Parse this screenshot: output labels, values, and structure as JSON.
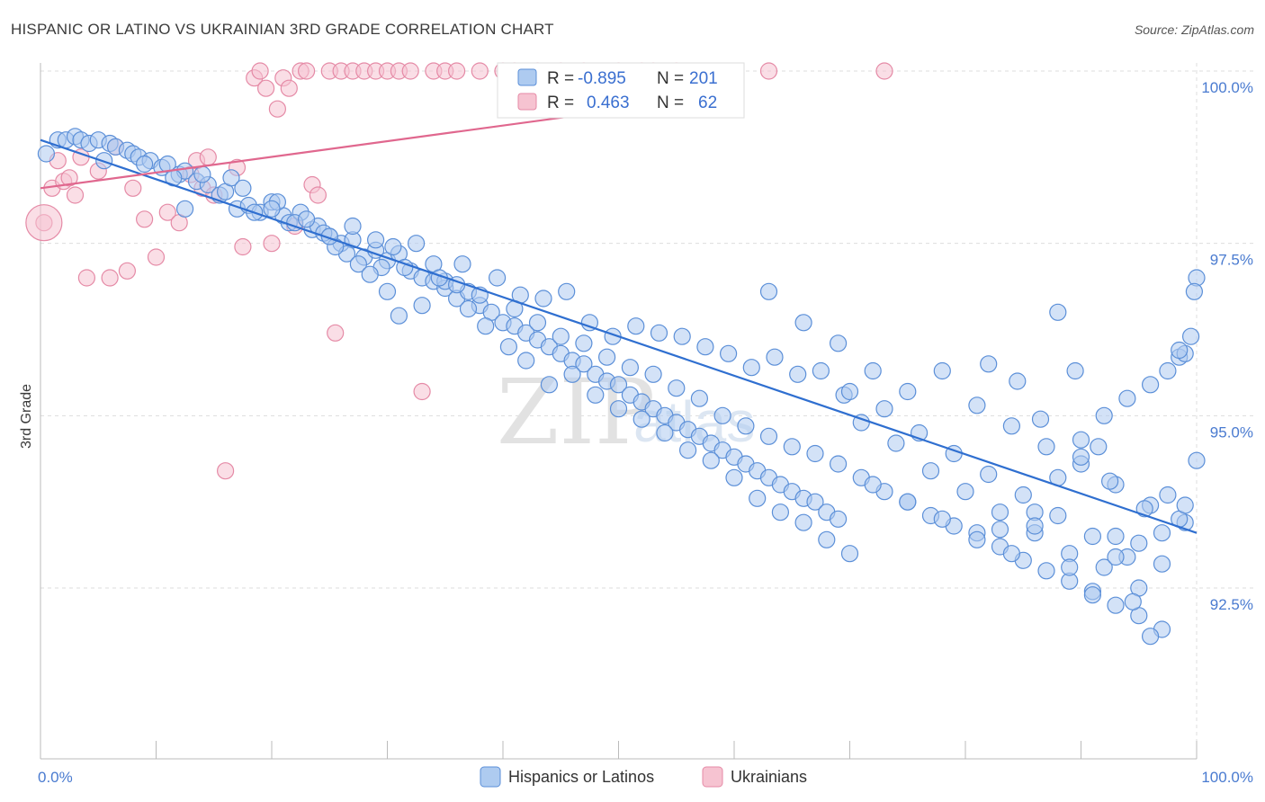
{
  "title": "HISPANIC OR LATINO VS UKRAINIAN 3RD GRADE CORRELATION CHART",
  "source": "Source: ZipAtlas.com",
  "watermark": {
    "zip": "ZIP",
    "atlas": "atlas"
  },
  "colors": {
    "blue_fill": "#aecbf0",
    "blue_stroke": "#5b8fd8",
    "blue_line": "#2f6fd0",
    "pink_fill": "#f6c3d1",
    "pink_stroke": "#e58aa6",
    "pink_line": "#e0678e"
  },
  "chart_data": {
    "type": "scatter",
    "title": "HISPANIC OR LATINO VS UKRAINIAN 3RD GRADE CORRELATION CHART",
    "ylabel": "3rd Grade",
    "xlabel": "",
    "x_tick_labels": [
      "0.0%",
      "100.0%"
    ],
    "y_tick_labels": [
      "100.0%",
      "97.5%",
      "95.0%",
      "92.5%"
    ],
    "y_ticks": [
      100.0,
      97.5,
      95.0,
      92.5
    ],
    "xlim": [
      0,
      100
    ],
    "ylim": [
      90.0,
      100.6
    ],
    "grid": true,
    "legend": {
      "placement": "top-center",
      "entries": [
        {
          "r_label": "R =",
          "r": "-0.895",
          "n_label": "N =",
          "n": "201"
        },
        {
          "r_label": "R =",
          "r": "0.463",
          "n_label": "N =",
          "n": "62"
        }
      ]
    },
    "series": [
      {
        "name": "Hispanics or Latinos",
        "trend": {
          "x": [
            0,
            100
          ],
          "y": [
            99.0,
            93.3
          ]
        },
        "points": [
          [
            0.5,
            98.8
          ],
          [
            1.5,
            99.0
          ],
          [
            2.2,
            99.0
          ],
          [
            3,
            99.05
          ],
          [
            3.5,
            99.0
          ],
          [
            4.2,
            98.95
          ],
          [
            5,
            99.0
          ],
          [
            6,
            98.95
          ],
          [
            6.5,
            98.9
          ],
          [
            7.5,
            98.85
          ],
          [
            8,
            98.8
          ],
          [
            8.5,
            98.75
          ],
          [
            9.5,
            98.7
          ],
          [
            10.5,
            98.6
          ],
          [
            11,
            98.65
          ],
          [
            12,
            98.5
          ],
          [
            12.5,
            98.55
          ],
          [
            13.5,
            98.4
          ],
          [
            14.5,
            98.35
          ],
          [
            15.5,
            98.2
          ],
          [
            16,
            98.25
          ],
          [
            17,
            98.0
          ],
          [
            18,
            98.05
          ],
          [
            19,
            97.95
          ],
          [
            20,
            98.1
          ],
          [
            21,
            97.9
          ],
          [
            21.5,
            97.8
          ],
          [
            22.5,
            97.95
          ],
          [
            23.5,
            97.7
          ],
          [
            24,
            97.75
          ],
          [
            25,
            97.6
          ],
          [
            26,
            97.5
          ],
          [
            27,
            97.55
          ],
          [
            28,
            97.3
          ],
          [
            29,
            97.4
          ],
          [
            30,
            97.25
          ],
          [
            31,
            97.35
          ],
          [
            32,
            97.1
          ],
          [
            33,
            97.0
          ],
          [
            34,
            96.95
          ],
          [
            35,
            96.85
          ],
          [
            36,
            96.7
          ],
          [
            37,
            96.8
          ],
          [
            38,
            96.6
          ],
          [
            39,
            96.5
          ],
          [
            40,
            96.35
          ],
          [
            41,
            96.3
          ],
          [
            42,
            96.2
          ],
          [
            43,
            96.1
          ],
          [
            44,
            96.0
          ],
          [
            45,
            95.9
          ],
          [
            46,
            95.8
          ],
          [
            47,
            95.75
          ],
          [
            48,
            95.6
          ],
          [
            49,
            95.5
          ],
          [
            50,
            95.45
          ],
          [
            51,
            95.3
          ],
          [
            52,
            95.2
          ],
          [
            53,
            95.1
          ],
          [
            54,
            95.0
          ],
          [
            55,
            94.9
          ],
          [
            56,
            94.8
          ],
          [
            57,
            94.7
          ],
          [
            58,
            94.6
          ],
          [
            59,
            94.5
          ],
          [
            60,
            94.4
          ],
          [
            61,
            94.3
          ],
          [
            62,
            94.2
          ],
          [
            63,
            94.1
          ],
          [
            64,
            94.0
          ],
          [
            65,
            93.9
          ],
          [
            66,
            93.8
          ],
          [
            67,
            93.75
          ],
          [
            68,
            93.6
          ],
          [
            69,
            93.5
          ],
          [
            5.5,
            98.7
          ],
          [
            9,
            98.65
          ],
          [
            11.5,
            98.45
          ],
          [
            14,
            98.5
          ],
          [
            16.5,
            98.45
          ],
          [
            18.5,
            97.95
          ],
          [
            20.5,
            98.1
          ],
          [
            22,
            97.8
          ],
          [
            24.5,
            97.65
          ],
          [
            26.5,
            97.35
          ],
          [
            27.5,
            97.2
          ],
          [
            29.5,
            97.15
          ],
          [
            30.5,
            97.45
          ],
          [
            32.5,
            97.5
          ],
          [
            34,
            97.2
          ],
          [
            36.5,
            97.2
          ],
          [
            39.5,
            97.0
          ],
          [
            41.5,
            96.75
          ],
          [
            43.5,
            96.7
          ],
          [
            45.5,
            96.8
          ],
          [
            47.5,
            96.35
          ],
          [
            49.5,
            96.15
          ],
          [
            51.5,
            96.3
          ],
          [
            53.5,
            96.2
          ],
          [
            55.5,
            96.15
          ],
          [
            57.5,
            96.0
          ],
          [
            59.5,
            95.9
          ],
          [
            61.5,
            95.7
          ],
          [
            63.5,
            95.85
          ],
          [
            65.5,
            95.6
          ],
          [
            67.5,
            95.65
          ],
          [
            69.5,
            95.3
          ],
          [
            12.5,
            98.0
          ],
          [
            17.5,
            98.3
          ],
          [
            20,
            98.0
          ],
          [
            25.5,
            97.45
          ],
          [
            28.5,
            97.05
          ],
          [
            30,
            96.8
          ],
          [
            31,
            96.45
          ],
          [
            33,
            96.6
          ],
          [
            35,
            96.95
          ],
          [
            37,
            96.55
          ],
          [
            38.5,
            96.3
          ],
          [
            40.5,
            96.0
          ],
          [
            42,
            95.8
          ],
          [
            44,
            95.45
          ],
          [
            46,
            95.6
          ],
          [
            48,
            95.3
          ],
          [
            50,
            95.1
          ],
          [
            52,
            94.95
          ],
          [
            54,
            94.75
          ],
          [
            56,
            94.5
          ],
          [
            58,
            94.35
          ],
          [
            60,
            94.1
          ],
          [
            62,
            93.8
          ],
          [
            64,
            93.6
          ],
          [
            66,
            93.45
          ],
          [
            68,
            93.2
          ],
          [
            70,
            93.0
          ],
          [
            23,
            97.85
          ],
          [
            25,
            97.6
          ],
          [
            27,
            97.75
          ],
          [
            29,
            97.55
          ],
          [
            31.5,
            97.15
          ],
          [
            34.5,
            97.0
          ],
          [
            36,
            96.9
          ],
          [
            38,
            96.75
          ],
          [
            41,
            96.55
          ],
          [
            43,
            96.35
          ],
          [
            45,
            96.15
          ],
          [
            47,
            96.05
          ],
          [
            49,
            95.85
          ],
          [
            51,
            95.7
          ],
          [
            53,
            95.6
          ],
          [
            55,
            95.4
          ],
          [
            57,
            95.25
          ],
          [
            59,
            95.0
          ],
          [
            61,
            94.85
          ],
          [
            63,
            94.7
          ],
          [
            65,
            94.55
          ],
          [
            67,
            94.45
          ],
          [
            69,
            94.3
          ],
          [
            71,
            94.1
          ],
          [
            73,
            93.9
          ],
          [
            75,
            93.75
          ],
          [
            77,
            93.55
          ],
          [
            79,
            93.4
          ],
          [
            81,
            93.3
          ],
          [
            83,
            93.1
          ],
          [
            85,
            92.9
          ],
          [
            87,
            92.75
          ],
          [
            89,
            92.6
          ],
          [
            91,
            92.45
          ],
          [
            93,
            92.25
          ],
          [
            95,
            92.1
          ],
          [
            97,
            91.9
          ],
          [
            63,
            96.8
          ],
          [
            66,
            96.35
          ],
          [
            69,
            96.05
          ],
          [
            72,
            95.65
          ],
          [
            75,
            95.35
          ],
          [
            78,
            95.65
          ],
          [
            81,
            95.15
          ],
          [
            84,
            94.85
          ],
          [
            87,
            94.55
          ],
          [
            90,
            94.3
          ],
          [
            93,
            94.0
          ],
          [
            96,
            93.7
          ],
          [
            99,
            93.45
          ],
          [
            71,
            94.9
          ],
          [
            74,
            94.6
          ],
          [
            77,
            94.2
          ],
          [
            80,
            93.9
          ],
          [
            83,
            93.6
          ],
          [
            86,
            93.3
          ],
          [
            89,
            93.0
          ],
          [
            92,
            92.8
          ],
          [
            95,
            92.5
          ],
          [
            70,
            95.35
          ],
          [
            73,
            95.1
          ],
          [
            76,
            94.75
          ],
          [
            79,
            94.45
          ],
          [
            82,
            94.15
          ],
          [
            85,
            93.85
          ],
          [
            88,
            93.55
          ],
          [
            91,
            93.25
          ],
          [
            94,
            92.95
          ],
          [
            97,
            92.85
          ],
          [
            72,
            94.0
          ],
          [
            75,
            93.75
          ],
          [
            78,
            93.5
          ],
          [
            81,
            93.2
          ],
          [
            84,
            93.0
          ],
          [
            86,
            93.6
          ],
          [
            88,
            94.1
          ],
          [
            90,
            94.65
          ],
          [
            92,
            95.0
          ],
          [
            94,
            95.25
          ],
          [
            96,
            95.45
          ],
          [
            97.5,
            95.65
          ],
          [
            98.5,
            95.85
          ],
          [
            99,
            95.9
          ],
          [
            83,
            93.35
          ],
          [
            86,
            93.4
          ],
          [
            89,
            92.8
          ],
          [
            91,
            92.4
          ],
          [
            93,
            92.95
          ],
          [
            95,
            93.15
          ],
          [
            97,
            93.3
          ],
          [
            98.5,
            93.5
          ],
          [
            99,
            93.7
          ],
          [
            100,
            94.35
          ],
          [
            88,
            96.5
          ],
          [
            89.5,
            95.65
          ],
          [
            91.5,
            94.55
          ],
          [
            93,
            93.25
          ],
          [
            94.5,
            92.3
          ],
          [
            96,
            91.8
          ],
          [
            82,
            95.75
          ],
          [
            84.5,
            95.5
          ],
          [
            86.5,
            94.95
          ],
          [
            90,
            94.4
          ],
          [
            92.5,
            94.05
          ],
          [
            95.5,
            93.65
          ],
          [
            97.5,
            93.85
          ],
          [
            98.5,
            95.95
          ],
          [
            99.5,
            96.15
          ],
          [
            100,
            97.0
          ],
          [
            99.8,
            96.8
          ]
        ]
      },
      {
        "name": "Ukrainians",
        "trend": {
          "x": [
            0,
            55
          ],
          "y": [
            98.3,
            99.55
          ]
        },
        "points": [
          [
            0.3,
            97.8
          ],
          [
            1,
            98.3
          ],
          [
            1.5,
            98.7
          ],
          [
            2,
            98.4
          ],
          [
            2.5,
            98.45
          ],
          [
            3,
            98.2
          ],
          [
            3.5,
            98.75
          ],
          [
            4,
            97.0
          ],
          [
            5,
            98.55
          ],
          [
            6,
            97.0
          ],
          [
            6.5,
            98.9
          ],
          [
            7.5,
            97.1
          ],
          [
            8,
            98.3
          ],
          [
            9,
            97.85
          ],
          [
            10,
            97.3
          ],
          [
            11,
            97.95
          ],
          [
            12,
            97.8
          ],
          [
            13,
            98.5
          ],
          [
            13.5,
            98.7
          ],
          [
            14,
            98.3
          ],
          [
            14.5,
            98.75
          ],
          [
            15,
            98.2
          ],
          [
            16,
            94.2
          ],
          [
            17,
            98.6
          ],
          [
            17.5,
            97.45
          ],
          [
            18.5,
            99.9
          ],
          [
            19,
            100.0
          ],
          [
            19.5,
            99.75
          ],
          [
            20,
            97.5
          ],
          [
            20.5,
            99.45
          ],
          [
            21,
            99.9
          ],
          [
            21.5,
            99.75
          ],
          [
            22,
            97.75
          ],
          [
            22.5,
            100.0
          ],
          [
            23,
            100.0
          ],
          [
            23.5,
            98.35
          ],
          [
            24,
            98.2
          ],
          [
            25,
            100.0
          ],
          [
            25.5,
            96.2
          ],
          [
            26,
            100.0
          ],
          [
            27,
            100.0
          ],
          [
            28,
            100.0
          ],
          [
            29,
            100.0
          ],
          [
            30,
            100.0
          ],
          [
            31,
            100.0
          ],
          [
            32,
            100.0
          ],
          [
            33,
            95.35
          ],
          [
            34,
            100.0
          ],
          [
            35,
            100.0
          ],
          [
            36,
            100.0
          ],
          [
            38,
            100.0
          ],
          [
            40,
            100.0
          ],
          [
            41,
            100.0
          ],
          [
            43,
            100.0
          ],
          [
            45,
            100.0
          ],
          [
            47,
            100.0
          ],
          [
            50,
            100.0
          ],
          [
            52,
            100.0
          ],
          [
            53,
            100.0
          ],
          [
            55,
            100.0
          ],
          [
            63,
            100.0
          ],
          [
            73,
            100.0
          ]
        ]
      }
    ]
  },
  "legend_bottom": [
    {
      "label": "Hispanics or Latinos"
    },
    {
      "label": "Ukrainians"
    }
  ]
}
